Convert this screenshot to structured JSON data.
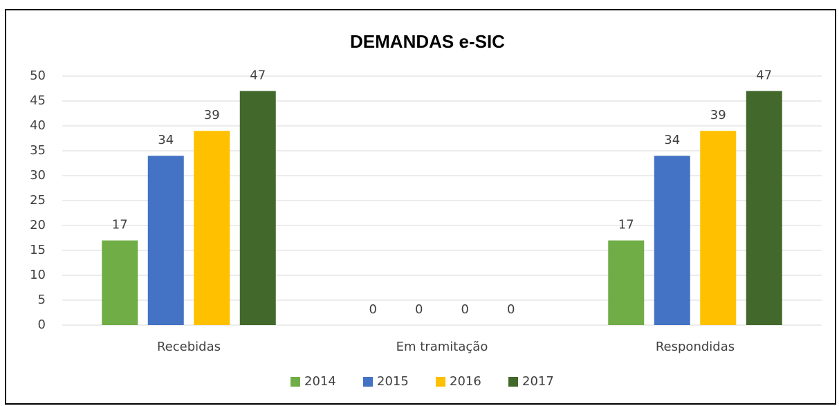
{
  "chart_data": {
    "type": "bar",
    "title": "DEMANDAS e-SIC",
    "categories": [
      "Recebidas",
      "Em tramitação",
      "Respondidas"
    ],
    "series": [
      {
        "name": "2014",
        "color": "#70ad47",
        "values": [
          17,
          0,
          17
        ]
      },
      {
        "name": "2015",
        "color": "#4472c4",
        "values": [
          34,
          0,
          34
        ]
      },
      {
        "name": "2016",
        "color": "#ffc000",
        "values": [
          39,
          0,
          39
        ]
      },
      {
        "name": "2017",
        "color": "#43682b",
        "values": [
          47,
          0,
          47
        ]
      }
    ],
    "ylim": [
      0,
      50
    ],
    "yticks": [
      0,
      5,
      10,
      15,
      20,
      25,
      30,
      35,
      40,
      45,
      50
    ],
    "grid": true,
    "legend": "bottom"
  }
}
